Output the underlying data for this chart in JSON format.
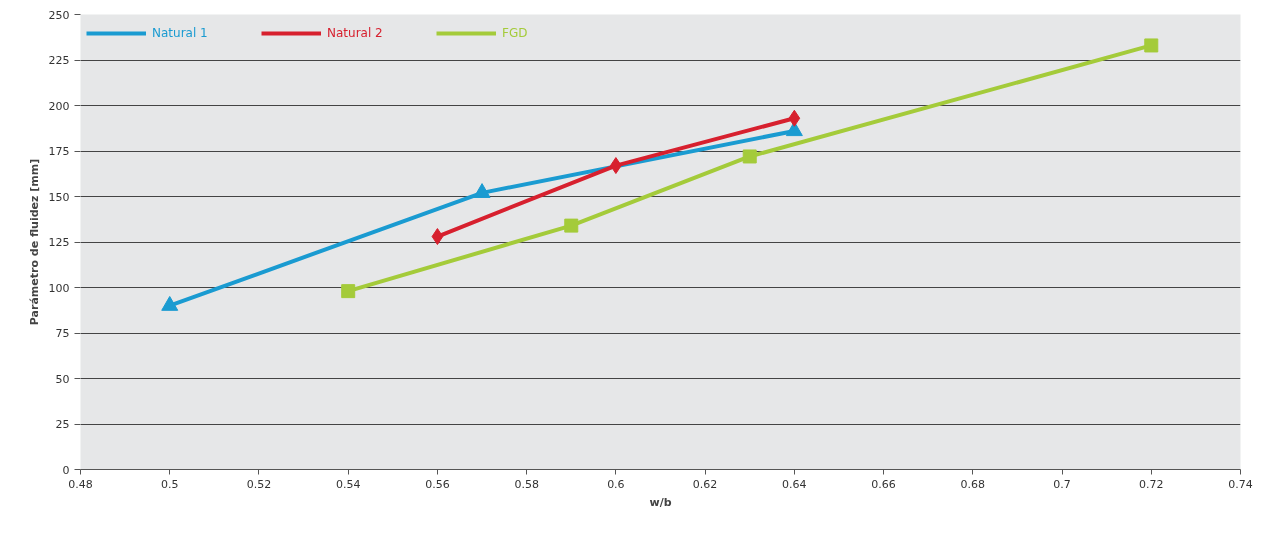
{
  "chart_data": {
    "type": "line",
    "xlabel": "w/b",
    "ylabel": "Parámetro de fluidez [mm]",
    "xlim": [
      0.48,
      0.74
    ],
    "xticks": [
      0.48,
      0.5,
      0.52,
      0.54,
      0.56,
      0.58,
      0.6,
      0.62,
      0.64,
      0.66,
      0.68,
      0.7,
      0.72,
      0.74
    ],
    "ylim": [
      0,
      250
    ],
    "yticks": [
      0,
      25,
      50,
      75,
      100,
      125,
      150,
      175,
      200,
      225,
      250
    ],
    "grid": "y",
    "legend": "top left",
    "line_style": "solid",
    "series": [
      {
        "name": "Natural 1",
        "color": "#1a9bd1",
        "marker": "triangle",
        "x": [
          0.5,
          0.57,
          0.64
        ],
        "values": [
          90,
          152,
          186
        ]
      },
      {
        "name": "Natural 2",
        "color": "#d7202e",
        "marker": "diamond",
        "x": [
          0.56,
          0.6,
          0.64
        ],
        "values": [
          128,
          167,
          193
        ]
      },
      {
        "name": "FGD",
        "color": "#a4cb3a",
        "marker": "square",
        "x": [
          0.54,
          0.59,
          0.63,
          0.72
        ],
        "values": [
          98,
          134,
          172,
          233
        ]
      }
    ]
  }
}
